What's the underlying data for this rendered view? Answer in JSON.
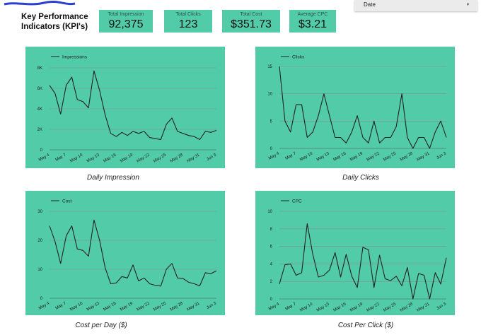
{
  "header": {
    "title": "Key Performance Indicators (KPI's)"
  },
  "kpis": [
    {
      "label": "Total Impression",
      "value": "92,375"
    },
    {
      "label": "Total Clicks",
      "value": "123"
    },
    {
      "label": "Total Cost",
      "value": "$351.73"
    },
    {
      "label": "Average CPC",
      "value": "$3.21"
    }
  ],
  "date_control": {
    "label": "Date",
    "arrow": "▾"
  },
  "colors": {
    "panel": "#52cca8",
    "line": "#222222",
    "page": "#ffffff"
  },
  "captions": [
    "Daily Impression",
    "Daily Clicks",
    "Cost per Day ($)",
    "Cost Per Click ($)"
  ],
  "chart_data": [
    {
      "type": "line",
      "legend": "Impressions",
      "x_ticks": [
        "May 4",
        "May 7",
        "May 10",
        "May 13",
        "May 16",
        "May 19",
        "May 22",
        "May 25",
        "May 28",
        "May 31",
        "Jun 3"
      ],
      "y_ticks": [
        "0",
        "2K",
        "4K",
        "6K",
        "8K"
      ],
      "ylim": [
        0,
        8000
      ],
      "values": [
        6300,
        5500,
        3500,
        6300,
        7100,
        4900,
        4700,
        4100,
        7700,
        5800,
        3400,
        1600,
        1300,
        1700,
        1400,
        1800,
        1600,
        1800,
        1200,
        1100,
        1000,
        2500,
        3100,
        1800,
        1600,
        1400,
        1300,
        1000,
        1800,
        1700,
        1900
      ]
    },
    {
      "type": "line",
      "legend": "Clicks",
      "x_ticks": [
        "May 4",
        "May 7",
        "May 10",
        "May 13",
        "May 16",
        "May 19",
        "May 22",
        "May 25",
        "May 28",
        "May 31",
        "Jun 3"
      ],
      "y_ticks": [
        "0",
        "5",
        "10",
        "15"
      ],
      "ylim": [
        0,
        15
      ],
      "values": [
        15,
        5,
        3,
        8,
        8,
        2,
        3,
        6,
        10,
        6,
        2,
        2,
        1,
        3,
        6,
        2,
        1,
        5,
        1,
        2,
        2,
        4,
        10,
        2,
        0,
        2,
        2,
        0,
        3,
        5,
        2
      ]
    },
    {
      "type": "line",
      "legend": "Cost",
      "x_ticks": [
        "May 4",
        "May 7",
        "May 10",
        "May 13",
        "May 16",
        "May 19",
        "May 22",
        "May 25",
        "May 28",
        "May 31",
        "Jun 3"
      ],
      "y_ticks": [
        "0",
        "10",
        "20",
        "30"
      ],
      "ylim": [
        0,
        30
      ],
      "values": [
        25,
        19.5,
        12,
        21.5,
        25,
        17,
        16.5,
        14.5,
        27,
        20,
        10.5,
        5,
        5.3,
        7.5,
        7,
        11.5,
        6,
        7,
        5,
        4.5,
        4.2,
        10,
        12,
        7,
        6.8,
        5.5,
        5,
        4.3,
        8.8,
        8.5,
        9.5
      ]
    },
    {
      "type": "line",
      "legend": "CPC",
      "x_ticks": [
        "May 4",
        "May 7",
        "May 10",
        "May 13",
        "May 16",
        "May 19",
        "May 22",
        "May 25",
        "May 28",
        "May 31",
        "Jun 3"
      ],
      "y_ticks": [
        "0",
        "2",
        "4",
        "6",
        "8",
        "10"
      ],
      "ylim": [
        0,
        10
      ],
      "values": [
        1.7,
        3.9,
        4,
        2.7,
        3,
        8.6,
        5.1,
        2.5,
        2.7,
        3.3,
        5.3,
        2.5,
        5.1,
        2.6,
        1.3,
        5.9,
        5.6,
        1.3,
        5,
        2.3,
        2.1,
        2.6,
        1.5,
        3.6,
        0,
        2.9,
        2.7,
        0,
        3,
        1.7,
        4.7
      ]
    }
  ]
}
